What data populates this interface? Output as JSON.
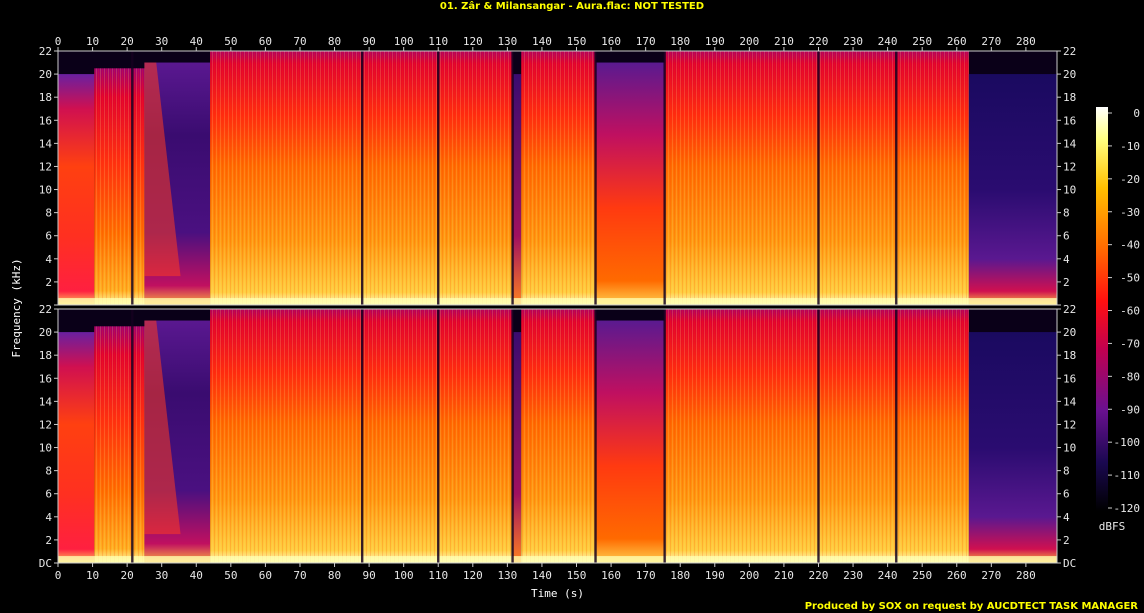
{
  "window": {
    "title": "01. Zâr & Milansangar - Aura.flac: NOT TESTED",
    "credit": "Produced by SOX on request by AUCDTECT TASK MANAGER"
  },
  "chart_data": {
    "type": "heatmap",
    "title": "01. Zâr & Milansangar - Aura.flac: NOT TESTED",
    "xlabel": "Time (s)",
    "ylabel": "Frequency (kHz)",
    "colorbar_label": "dBFS",
    "xlim": [
      0,
      289
    ],
    "ylim_khz": [
      0,
      22
    ],
    "x_ticks": [
      0,
      10,
      20,
      30,
      40,
      50,
      60,
      70,
      80,
      90,
      100,
      110,
      120,
      130,
      140,
      150,
      160,
      170,
      180,
      190,
      200,
      210,
      220,
      230,
      240,
      250,
      260,
      270,
      280
    ],
    "y_ticks": [
      "DC",
      "2",
      "4",
      "6",
      "8",
      "10",
      "12",
      "14",
      "16",
      "18",
      "20",
      "22"
    ],
    "y_tick_values": [
      0,
      2,
      4,
      6,
      8,
      10,
      12,
      14,
      16,
      18,
      20,
      22
    ],
    "colorbar_ticks": [
      "0",
      "-10",
      "-20",
      "-30",
      "-40",
      "-50",
      "-60",
      "-70",
      "-80",
      "-90",
      "-100",
      "-110",
      "-120"
    ],
    "colorbar_range_dbfs": [
      -120,
      0
    ],
    "channels": 2,
    "segments": [
      {
        "t0": 0,
        "t1": 10.5,
        "top_khz": 20,
        "level": "medium"
      },
      {
        "t0": 10.5,
        "t1": 25,
        "top_khz": 20.5,
        "level": "high"
      },
      {
        "t0": 25,
        "t1": 44,
        "top_khz": 21,
        "level": "fade"
      },
      {
        "t0": 44,
        "t1": 88,
        "top_khz": 22,
        "level": "full"
      },
      {
        "t0": 88,
        "t1": 110,
        "top_khz": 22,
        "level": "full"
      },
      {
        "t0": 110,
        "t1": 131.5,
        "top_khz": 22,
        "level": "full"
      },
      {
        "t0": 131.5,
        "t1": 134,
        "top_khz": 20,
        "level": "low"
      },
      {
        "t0": 134,
        "t1": 155.5,
        "top_khz": 22,
        "level": "full"
      },
      {
        "t0": 155.5,
        "t1": 175.5,
        "top_khz": 21,
        "level": "mixed"
      },
      {
        "t0": 175.5,
        "t1": 220,
        "top_khz": 22,
        "level": "full"
      },
      {
        "t0": 220,
        "t1": 242.5,
        "top_khz": 22,
        "level": "full"
      },
      {
        "t0": 242.5,
        "t1": 263.5,
        "top_khz": 22,
        "level": "full"
      },
      {
        "t0": 263.5,
        "t1": 289,
        "top_khz": 20,
        "level": "quiet"
      }
    ],
    "gaps_s": [
      21.5,
      88,
      110,
      131.5,
      155.5,
      175.5,
      220,
      242.5
    ],
    "colors": {
      "peak": "#ffffcc",
      "high": "#ffb020",
      "mid": "#ff5a00",
      "low": "#e0002a",
      "quiet": "#7a108a",
      "floor": "#0a0018",
      "text": "#ffff00"
    }
  }
}
